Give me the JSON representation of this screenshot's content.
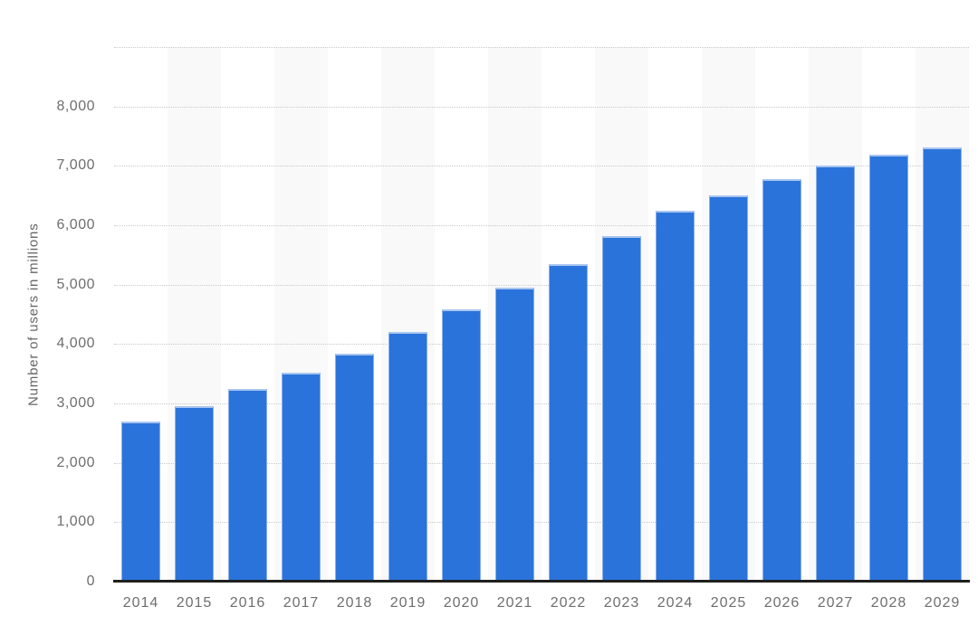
{
  "chart_data": {
    "type": "bar",
    "title": "",
    "xlabel": "",
    "ylabel": "Number of users in millions",
    "categories": [
      "2014",
      "2015",
      "2016",
      "2017",
      "2018",
      "2019",
      "2020",
      "2021",
      "2022",
      "2023",
      "2024",
      "2025",
      "2026",
      "2027",
      "2028",
      "2029"
    ],
    "values": [
      2700,
      2950,
      3240,
      3520,
      3830,
      4200,
      4590,
      4950,
      5340,
      5810,
      6250,
      6500,
      6780,
      7010,
      7190,
      7310
    ],
    "unit": "millions of users",
    "ylim": [
      0,
      9000
    ],
    "ytick_step": 1000,
    "ytick_labels": [
      "0",
      "1,000",
      "2,000",
      "3,000",
      "4,000",
      "5,000",
      "6,000",
      "7,000",
      "8,000"
    ],
    "grid": "horizontal dotted gridlines every 1,000 up to unlabeled 9,000 line",
    "legend_position": "none",
    "background_bands": "alternating vertical column shading on odd-index years",
    "colors": {
      "bar_fill": "#2a73db",
      "bar_top_edge": "#a9c5ef",
      "bar_side_edge": "#89afe9",
      "band_shade": "#f9f9f9",
      "gridline": "#c9c9c9",
      "axis_line": "#1f1f1f",
      "tick_label_text": "#6e6e6e",
      "axis_title_text": "#666666",
      "page_background": "#ffffff"
    }
  }
}
